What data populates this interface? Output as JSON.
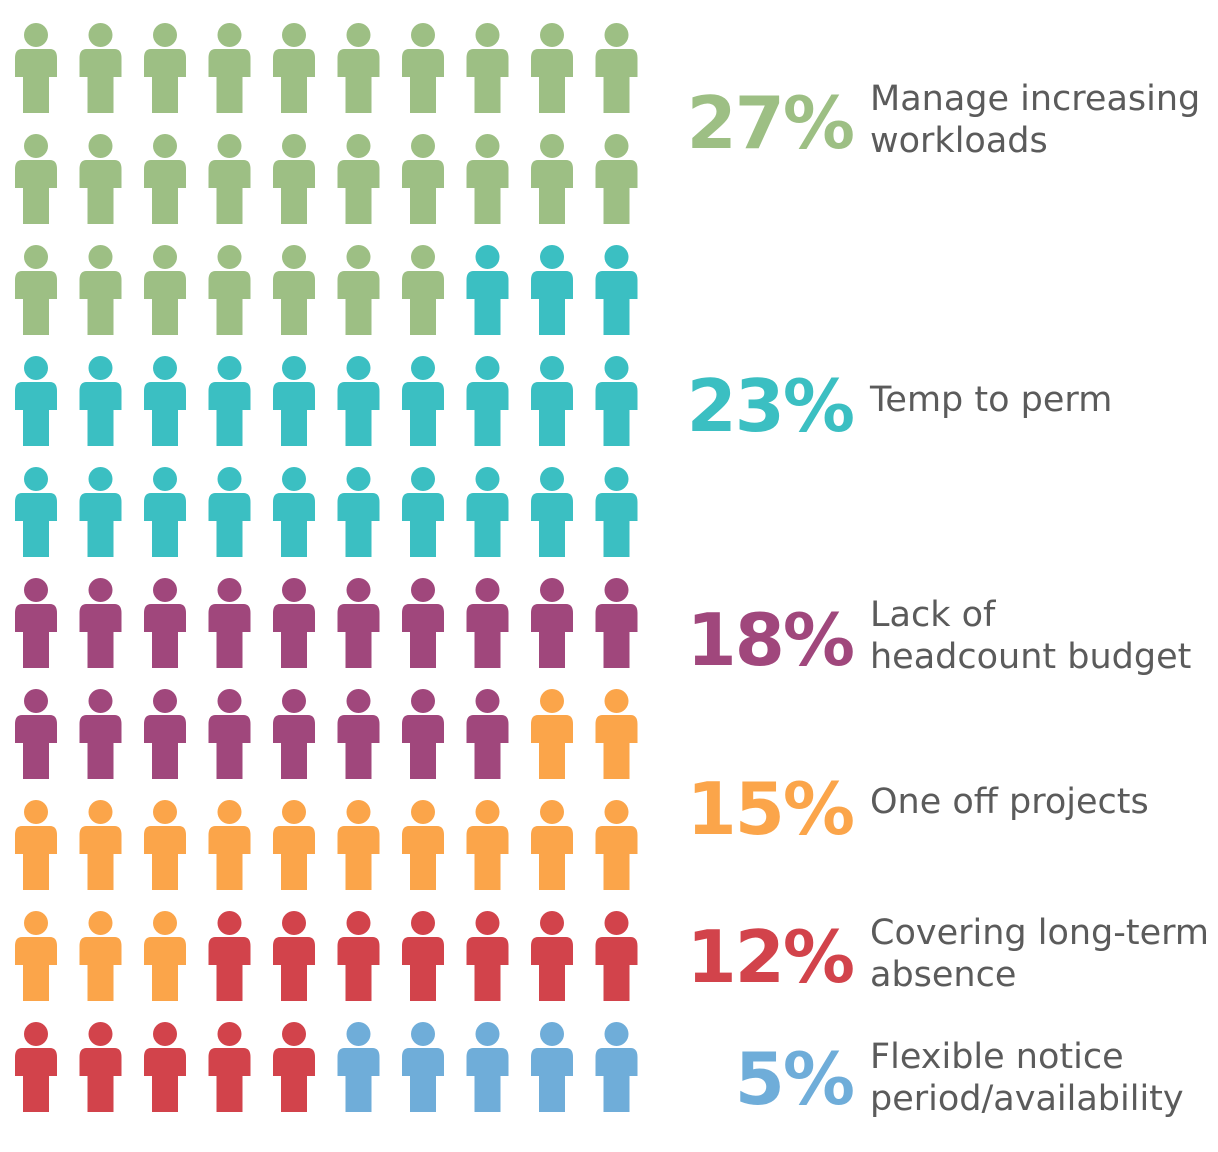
{
  "chart_data": {
    "type": "pictogram",
    "total_icons": 100,
    "rows": 10,
    "columns": 10,
    "unit": "%",
    "series": [
      {
        "name": "Manage increasing workloads",
        "label": "Manage increasing\nworkloads",
        "value": 27,
        "value_text": "27%",
        "color": "#9dbf84"
      },
      {
        "name": "Temp to perm",
        "label": "Temp to perm",
        "value": 23,
        "value_text": "23%",
        "color": "#3bbfc2"
      },
      {
        "name": "Lack of headcount budget",
        "label": "Lack of\nheadcount budget",
        "value": 18,
        "value_text": "18%",
        "color": "#a0477c"
      },
      {
        "name": "One off projects",
        "label": "One off projects",
        "value": 15,
        "value_text": "15%",
        "color": "#fba54a"
      },
      {
        "name": "Covering long-term absence",
        "label": "Covering long-term\nabsence",
        "value": 12,
        "value_text": "12%",
        "color": "#d2434b"
      },
      {
        "name": "Flexible notice period/availability",
        "label": "Flexible notice\nperiod/availability",
        "value": 5,
        "value_text": "5%",
        "color": "#6fadd9"
      }
    ]
  }
}
